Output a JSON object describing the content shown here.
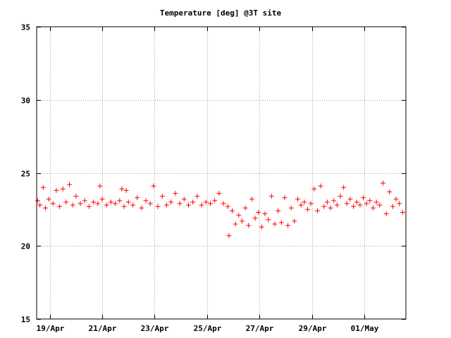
{
  "chart_data": {
    "type": "scatter",
    "title": "Temperature [deg] @3T site",
    "xlabel": "",
    "ylabel": "",
    "ylim": [
      15,
      35
    ],
    "y_ticks": [
      15,
      20,
      25,
      30,
      35
    ],
    "x_range": [
      "2015-04-18T12:00",
      "2015-05-02T14:00"
    ],
    "x_ticks": [
      {
        "date": "2015-04-19",
        "label": "19/Apr"
      },
      {
        "date": "2015-04-21",
        "label": "21/Apr"
      },
      {
        "date": "2015-04-23",
        "label": "23/Apr"
      },
      {
        "date": "2015-04-25",
        "label": "25/Apr"
      },
      {
        "date": "2015-04-27",
        "label": "27/Apr"
      },
      {
        "date": "2015-04-29",
        "label": "29/Apr"
      },
      {
        "date": "2015-05-01",
        "label": "01/May"
      }
    ],
    "grid": true,
    "marker": "+",
    "color": "#ff0000",
    "series": [
      {
        "name": "",
        "points": [
          {
            "x": "2015-04-18T13:00",
            "y": 23.1
          },
          {
            "x": "2015-04-18T15:00",
            "y": 22.8
          },
          {
            "x": "2015-04-18T18:00",
            "y": 24.0
          },
          {
            "x": "2015-04-18T20:00",
            "y": 22.6
          },
          {
            "x": "2015-04-18T23:00",
            "y": 23.2
          },
          {
            "x": "2015-04-19T03:00",
            "y": 22.9
          },
          {
            "x": "2015-04-19T06:00",
            "y": 23.8
          },
          {
            "x": "2015-04-19T09:00",
            "y": 22.7
          },
          {
            "x": "2015-04-19T12:00",
            "y": 23.9
          },
          {
            "x": "2015-04-19T15:00",
            "y": 23.0
          },
          {
            "x": "2015-04-19T18:00",
            "y": 24.2
          },
          {
            "x": "2015-04-19T21:00",
            "y": 22.8
          },
          {
            "x": "2015-04-20T00:00",
            "y": 23.4
          },
          {
            "x": "2015-04-20T04:00",
            "y": 22.9
          },
          {
            "x": "2015-04-20T08:00",
            "y": 23.1
          },
          {
            "x": "2015-04-20T12:00",
            "y": 22.7
          },
          {
            "x": "2015-04-20T16:00",
            "y": 23.0
          },
          {
            "x": "2015-04-20T20:00",
            "y": 22.9
          },
          {
            "x": "2015-04-21T00:00",
            "y": 23.2
          },
          {
            "x": "2015-04-21T04:00",
            "y": 22.8
          },
          {
            "x": "2015-04-21T08:00",
            "y": 23.0
          },
          {
            "x": "2015-04-21T12:00",
            "y": 22.9
          },
          {
            "x": "2015-04-21T16:00",
            "y": 23.1
          },
          {
            "x": "2015-04-21T20:00",
            "y": 22.7
          },
          {
            "x": "2015-04-20T22:00",
            "y": 24.1
          },
          {
            "x": "2015-04-22T00:00",
            "y": 23.0
          },
          {
            "x": "2015-04-21T18:00",
            "y": 23.9
          },
          {
            "x": "2015-04-21T22:00",
            "y": 23.8
          },
          {
            "x": "2015-04-22T04:00",
            "y": 22.8
          },
          {
            "x": "2015-04-22T08:00",
            "y": 23.3
          },
          {
            "x": "2015-04-22T12:00",
            "y": 22.6
          },
          {
            "x": "2015-04-22T16:00",
            "y": 23.1
          },
          {
            "x": "2015-04-22T20:00",
            "y": 22.9
          },
          {
            "x": "2015-04-22T23:00",
            "y": 24.1
          },
          {
            "x": "2015-04-23T03:00",
            "y": 22.7
          },
          {
            "x": "2015-04-23T07:00",
            "y": 23.4
          },
          {
            "x": "2015-04-23T11:00",
            "y": 22.8
          },
          {
            "x": "2015-04-23T15:00",
            "y": 23.0
          },
          {
            "x": "2015-04-23T19:00",
            "y": 23.6
          },
          {
            "x": "2015-04-23T23:00",
            "y": 22.9
          },
          {
            "x": "2015-04-24T03:00",
            "y": 23.2
          },
          {
            "x": "2015-04-24T07:00",
            "y": 22.8
          },
          {
            "x": "2015-04-24T11:00",
            "y": 23.0
          },
          {
            "x": "2015-04-24T15:00",
            "y": 23.4
          },
          {
            "x": "2015-04-24T19:00",
            "y": 22.8
          },
          {
            "x": "2015-04-24T23:00",
            "y": 23.0
          },
          {
            "x": "2015-04-25T03:00",
            "y": 22.9
          },
          {
            "x": "2015-04-25T07:00",
            "y": 23.1
          },
          {
            "x": "2015-04-25T11:00",
            "y": 23.6
          },
          {
            "x": "2015-04-25T15:00",
            "y": 22.9
          },
          {
            "x": "2015-04-25T19:00",
            "y": 22.7
          },
          {
            "x": "2015-04-25T20:00",
            "y": 20.7
          },
          {
            "x": "2015-04-25T23:00",
            "y": 22.4
          },
          {
            "x": "2015-04-26T02:00",
            "y": 21.5
          },
          {
            "x": "2015-04-26T05:00",
            "y": 22.1
          },
          {
            "x": "2015-04-26T08:00",
            "y": 21.7
          },
          {
            "x": "2015-04-26T11:00",
            "y": 22.6
          },
          {
            "x": "2015-04-26T14:00",
            "y": 21.4
          },
          {
            "x": "2015-04-26T17:00",
            "y": 23.2
          },
          {
            "x": "2015-04-26T20:00",
            "y": 21.9
          },
          {
            "x": "2015-04-26T23:00",
            "y": 22.3
          },
          {
            "x": "2015-04-27T02:00",
            "y": 21.3
          },
          {
            "x": "2015-04-27T05:00",
            "y": 22.2
          },
          {
            "x": "2015-04-27T08:00",
            "y": 21.8
          },
          {
            "x": "2015-04-27T11:00",
            "y": 23.4
          },
          {
            "x": "2015-04-27T14:00",
            "y": 21.5
          },
          {
            "x": "2015-04-27T17:00",
            "y": 22.4
          },
          {
            "x": "2015-04-27T20:00",
            "y": 21.6
          },
          {
            "x": "2015-04-27T23:00",
            "y": 23.3
          },
          {
            "x": "2015-04-28T02:00",
            "y": 21.4
          },
          {
            "x": "2015-04-28T05:00",
            "y": 22.6
          },
          {
            "x": "2015-04-28T08:00",
            "y": 21.7
          },
          {
            "x": "2015-04-28T11:00",
            "y": 23.2
          },
          {
            "x": "2015-04-28T14:00",
            "y": 22.8
          },
          {
            "x": "2015-04-28T17:00",
            "y": 23.0
          },
          {
            "x": "2015-04-28T20:00",
            "y": 22.5
          },
          {
            "x": "2015-04-28T23:00",
            "y": 22.9
          },
          {
            "x": "2015-04-29T02:00",
            "y": 23.9
          },
          {
            "x": "2015-04-29T05:00",
            "y": 22.4
          },
          {
            "x": "2015-04-29T08:00",
            "y": 24.1
          },
          {
            "x": "2015-04-29T11:00",
            "y": 22.7
          },
          {
            "x": "2015-04-29T14:00",
            "y": 23.0
          },
          {
            "x": "2015-04-29T17:00",
            "y": 22.6
          },
          {
            "x": "2015-04-29T20:00",
            "y": 23.1
          },
          {
            "x": "2015-04-29T23:00",
            "y": 22.8
          },
          {
            "x": "2015-04-30T02:00",
            "y": 23.4
          },
          {
            "x": "2015-04-30T05:00",
            "y": 24.0
          },
          {
            "x": "2015-04-30T08:00",
            "y": 22.9
          },
          {
            "x": "2015-04-30T11:00",
            "y": 23.2
          },
          {
            "x": "2015-04-30T14:00",
            "y": 22.7
          },
          {
            "x": "2015-04-30T17:00",
            "y": 23.0
          },
          {
            "x": "2015-04-30T20:00",
            "y": 22.8
          },
          {
            "x": "2015-04-30T23:00",
            "y": 23.3
          },
          {
            "x": "2015-05-01T02:00",
            "y": 22.9
          },
          {
            "x": "2015-05-01T05:00",
            "y": 23.1
          },
          {
            "x": "2015-05-01T08:00",
            "y": 22.6
          },
          {
            "x": "2015-05-01T11:00",
            "y": 23.0
          },
          {
            "x": "2015-05-01T14:00",
            "y": 22.8
          },
          {
            "x": "2015-05-01T17:00",
            "y": 24.3
          },
          {
            "x": "2015-05-01T20:00",
            "y": 22.2
          },
          {
            "x": "2015-05-01T23:00",
            "y": 23.7
          },
          {
            "x": "2015-05-02T02:00",
            "y": 22.7
          },
          {
            "x": "2015-05-02T05:00",
            "y": 23.2
          },
          {
            "x": "2015-05-02T08:00",
            "y": 22.9
          },
          {
            "x": "2015-05-02T11:00",
            "y": 22.3
          }
        ]
      }
    ]
  }
}
